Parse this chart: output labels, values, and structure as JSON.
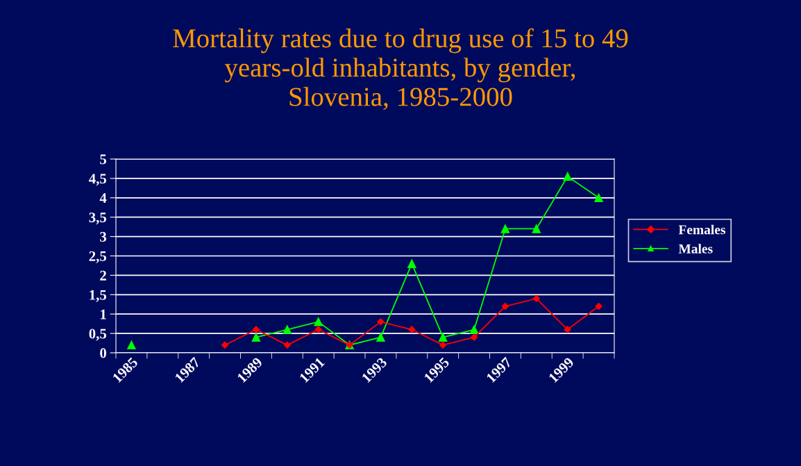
{
  "chart_data": {
    "type": "line",
    "title": "Mortality rates due to drug use of 15 to 49\nyears-old inhabitants, by gender,\nSlovenia, 1985-2000",
    "categories": [
      "1985",
      null,
      "1987",
      null,
      "1989",
      null,
      "1991",
      null,
      "1993",
      null,
      "1995",
      null,
      "1997",
      null,
      "1999",
      null
    ],
    "series": [
      {
        "name": "Females",
        "color": "#ff0000",
        "marker": "diamond",
        "values": [
          null,
          null,
          null,
          0.2,
          0.6,
          0.2,
          0.6,
          0.2,
          0.8,
          0.6,
          0.2,
          0.4,
          1.2,
          1.4,
          0.6,
          1.2
        ]
      },
      {
        "name": "Males",
        "color": "#00ff00",
        "marker": "triangle",
        "values": [
          0.2,
          null,
          null,
          null,
          0.4,
          0.6,
          0.8,
          0.2,
          0.4,
          2.3,
          0.4,
          0.6,
          3.2,
          3.2,
          4.55,
          4.0
        ]
      }
    ],
    "ylim": [
      0,
      5
    ],
    "yticks": [
      0,
      {
        "value": 0.5,
        "label": "0,5"
      },
      1,
      {
        "value": 1.5,
        "label": "1,5"
      },
      2,
      {
        "value": 2.5,
        "label": "2,5"
      },
      3,
      {
        "value": 3.5,
        "label": "3,5"
      },
      4,
      {
        "value": 4.5,
        "label": "4,5"
      },
      5
    ],
    "grid": "y",
    "legend": "right",
    "line_style": "solid"
  }
}
